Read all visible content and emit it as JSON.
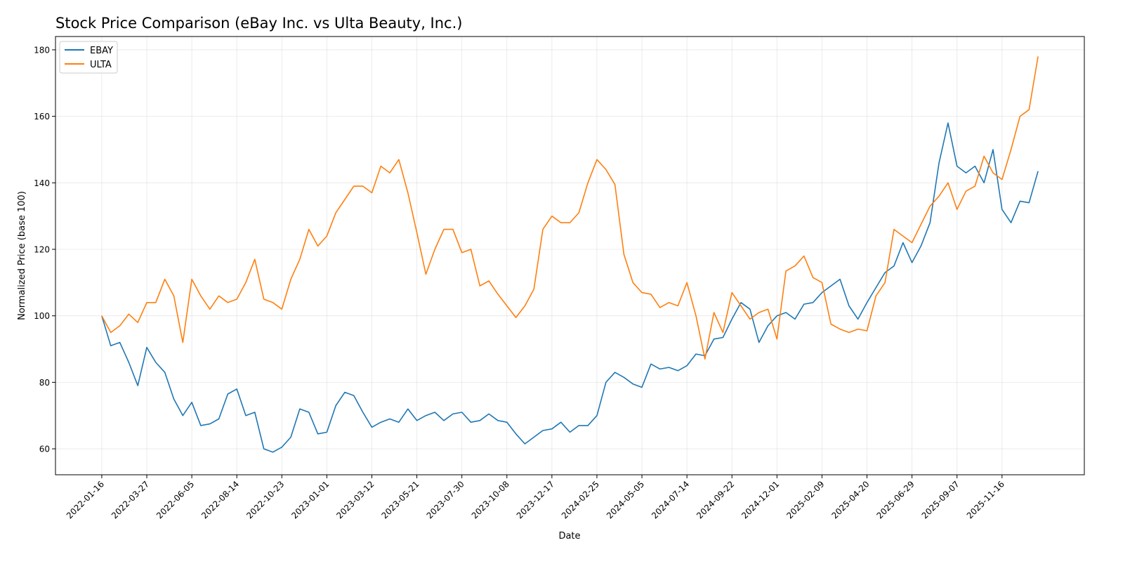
{
  "chart_data": {
    "type": "line",
    "title": "Stock Price Comparison (eBay Inc. vs Ulta Beauty, Inc.)",
    "xlabel": "Date",
    "ylabel": "Normalized Price (base 100)",
    "xlim": [
      "2021-11-05",
      "2026-03-24"
    ],
    "ylim": [
      52.2,
      184
    ],
    "grid": true,
    "legend_position": "top-left",
    "x_ticks": [
      "2022-01-16",
      "2022-03-27",
      "2022-06-05",
      "2022-08-14",
      "2022-10-23",
      "2023-01-01",
      "2023-03-12",
      "2023-05-21",
      "2023-07-30",
      "2023-10-08",
      "2023-12-17",
      "2024-02-25",
      "2024-05-05",
      "2024-07-14",
      "2024-09-22",
      "2024-12-01",
      "2025-02-09",
      "2025-04-20",
      "2025-06-29",
      "2025-09-07",
      "2025-11-16"
    ],
    "y_ticks": [
      60,
      80,
      100,
      120,
      140,
      160,
      180
    ],
    "x": [
      "2022-01-16",
      "2022-01-30",
      "2022-02-13",
      "2022-02-27",
      "2022-03-13",
      "2022-03-27",
      "2022-04-10",
      "2022-04-24",
      "2022-05-08",
      "2022-05-22",
      "2022-06-05",
      "2022-06-19",
      "2022-07-03",
      "2022-07-17",
      "2022-07-31",
      "2022-08-14",
      "2022-08-28",
      "2022-09-11",
      "2022-09-25",
      "2022-10-09",
      "2022-10-23",
      "2022-11-06",
      "2022-11-20",
      "2022-12-04",
      "2022-12-18",
      "2023-01-01",
      "2023-01-15",
      "2023-01-29",
      "2023-02-12",
      "2023-02-26",
      "2023-03-12",
      "2023-03-26",
      "2023-04-09",
      "2023-04-23",
      "2023-05-07",
      "2023-05-21",
      "2023-06-04",
      "2023-06-18",
      "2023-07-02",
      "2023-07-16",
      "2023-07-30",
      "2023-08-13",
      "2023-08-27",
      "2023-09-10",
      "2023-09-24",
      "2023-10-08",
      "2023-10-22",
      "2023-11-05",
      "2023-11-19",
      "2023-12-03",
      "2023-12-17",
      "2023-12-31",
      "2024-01-14",
      "2024-01-28",
      "2024-02-11",
      "2024-02-25",
      "2024-03-10",
      "2024-03-24",
      "2024-04-07",
      "2024-04-21",
      "2024-05-05",
      "2024-05-19",
      "2024-06-02",
      "2024-06-16",
      "2024-06-30",
      "2024-07-14",
      "2024-07-28",
      "2024-08-11",
      "2024-08-25",
      "2024-09-08",
      "2024-09-22",
      "2024-10-06",
      "2024-10-20",
      "2024-11-03",
      "2024-11-17",
      "2024-12-01",
      "2024-12-15",
      "2024-12-29",
      "2025-01-12",
      "2025-01-26",
      "2025-02-09",
      "2025-02-23",
      "2025-03-09",
      "2025-03-23",
      "2025-04-06",
      "2025-04-20",
      "2025-05-04",
      "2025-05-18",
      "2025-06-01",
      "2025-06-15",
      "2025-06-29",
      "2025-07-13",
      "2025-07-27",
      "2025-08-10",
      "2025-08-24",
      "2025-09-07",
      "2025-09-21",
      "2025-10-05",
      "2025-10-19",
      "2025-11-02",
      "2025-11-16",
      "2025-11-30",
      "2025-12-14",
      "2025-12-28",
      "2026-01-11"
    ],
    "series": [
      {
        "name": "EBAY",
        "color": "#1f77b4",
        "values": [
          100,
          91,
          92,
          86,
          79,
          90.5,
          86,
          83,
          75,
          70,
          74,
          67,
          67.5,
          69,
          76.5,
          78,
          70,
          71,
          60,
          59,
          60.5,
          63.5,
          72,
          71,
          64.5,
          65,
          73,
          77,
          76,
          71,
          66.5,
          68,
          69,
          68,
          72,
          68.5,
          70,
          71,
          68.5,
          70.5,
          71,
          68,
          68.5,
          70.5,
          68.5,
          68,
          64.5,
          61.5,
          63.5,
          65.5,
          66,
          68,
          65,
          67,
          67,
          70,
          80,
          83,
          81.5,
          79.5,
          78.5,
          85.5,
          84,
          84.5,
          83.5,
          85,
          88.5,
          88,
          93,
          93.5,
          99,
          104,
          102,
          92,
          97,
          100,
          101,
          99,
          103.5,
          104,
          107,
          109,
          111,
          103,
          99,
          104,
          108.5,
          113,
          115,
          122,
          116,
          121,
          128,
          146,
          158,
          145,
          143,
          145,
          140,
          150,
          132,
          128,
          134.5,
          134,
          143.5
        ]
      },
      {
        "name": "ULTA",
        "color": "#ff7f0e",
        "values": [
          100,
          95,
          97,
          100.5,
          98,
          104,
          104,
          111,
          106,
          92,
          111,
          106,
          102,
          106,
          104,
          105,
          110,
          117,
          105,
          104,
          102,
          111,
          117,
          126,
          121,
          124,
          131,
          135,
          139,
          139,
          137,
          145,
          143,
          147,
          137,
          125,
          112.5,
          120,
          126,
          126,
          119,
          120,
          109,
          110.5,
          106.5,
          103,
          99.5,
          103,
          108,
          126,
          130,
          128,
          128,
          131,
          140,
          147,
          144,
          139.5,
          118.5,
          110,
          107,
          106.5,
          102.5,
          104,
          103,
          110,
          100,
          87,
          101,
          95,
          107,
          103,
          99,
          101,
          102,
          93,
          113.5,
          115,
          118,
          111.5,
          110,
          97.5,
          96,
          95,
          96,
          95.5,
          106,
          110,
          126,
          124,
          122,
          127.5,
          133,
          136,
          140,
          132,
          137.5,
          139,
          148,
          143,
          141,
          150,
          160,
          162,
          178
        ]
      }
    ]
  }
}
